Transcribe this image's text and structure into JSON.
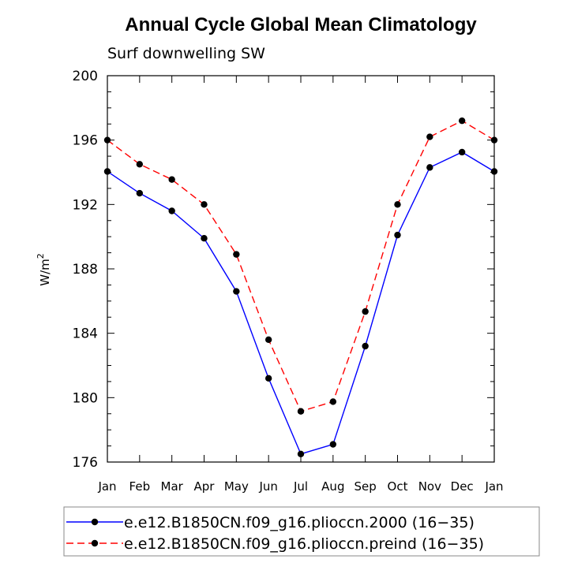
{
  "chart_data": {
    "type": "line",
    "title": "Annual Cycle Global Mean Climatology",
    "subtitle": "Surf downwelling SW",
    "ylabel": "W/m",
    "ylabel_sup": "2",
    "xlabel": "",
    "ylim": [
      176,
      200
    ],
    "yticks": [
      "200",
      "196",
      "192",
      "188",
      "184",
      "180",
      "176"
    ],
    "categories": [
      "Jan",
      "Feb",
      "Mar",
      "Apr",
      "May",
      "Jun",
      "Jul",
      "Aug",
      "Sep",
      "Oct",
      "Nov",
      "Dec",
      "Jan"
    ],
    "series": [
      {
        "name": "e.e12.B1850CN.f09_g16.plioccn.2000 (16−35)",
        "color": "#0000ff",
        "dash": "solid",
        "values": [
          194.05,
          192.7,
          191.6,
          189.9,
          186.6,
          181.2,
          176.5,
          177.1,
          183.2,
          190.1,
          194.3,
          195.25,
          194.05
        ]
      },
      {
        "name": "e.e12.B1850CN.f09_g16.plioccn.preind (16−35)",
        "color": "#ff0000",
        "dash": "dashed",
        "values": [
          196.0,
          194.5,
          193.55,
          192.0,
          188.9,
          183.6,
          179.15,
          179.75,
          185.35,
          192.0,
          196.2,
          197.2,
          196.0
        ]
      }
    ],
    "legend_position": "bottom"
  }
}
